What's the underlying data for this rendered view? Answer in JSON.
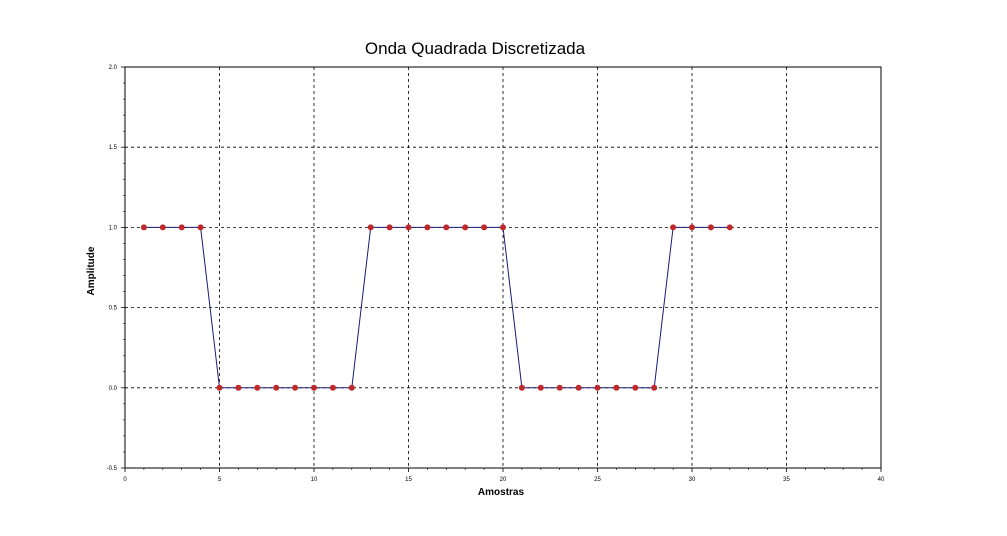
{
  "chart_data": {
    "type": "line",
    "title": "Onda Quadrada Discretizada",
    "xlabel": "Amostras",
    "ylabel": "Amplitude",
    "xlim": [
      0,
      40
    ],
    "ylim": [
      -0.5,
      2.0
    ],
    "x_ticks": [
      0,
      5,
      10,
      15,
      20,
      25,
      30,
      35,
      40
    ],
    "y_ticks": [
      -0.5,
      0.0,
      0.5,
      1.0,
      1.5,
      2.0
    ],
    "x_tick_labels": [
      "0",
      "5",
      "10",
      "15",
      "20",
      "25",
      "30",
      "35",
      "40"
    ],
    "y_tick_labels": [
      "-0.5",
      "0.0",
      "0.5",
      "1.0",
      "1.5",
      "2.0"
    ],
    "grid": true,
    "series": [
      {
        "line_color": "#1a1a7a",
        "marker_color": "#c0282a",
        "marker": "circle",
        "x": [
          1,
          2,
          3,
          4,
          5,
          6,
          7,
          8,
          9,
          10,
          11,
          12,
          13,
          14,
          15,
          16,
          17,
          18,
          19,
          20,
          21,
          22,
          23,
          24,
          25,
          26,
          27,
          28,
          29,
          30,
          31,
          32
        ],
        "y": [
          1,
          1,
          1,
          1,
          0,
          0,
          0,
          0,
          0,
          0,
          0,
          0,
          1,
          1,
          1,
          1,
          1,
          1,
          1,
          1,
          0,
          0,
          0,
          0,
          0,
          0,
          0,
          0,
          1,
          1,
          1,
          1
        ]
      }
    ]
  }
}
